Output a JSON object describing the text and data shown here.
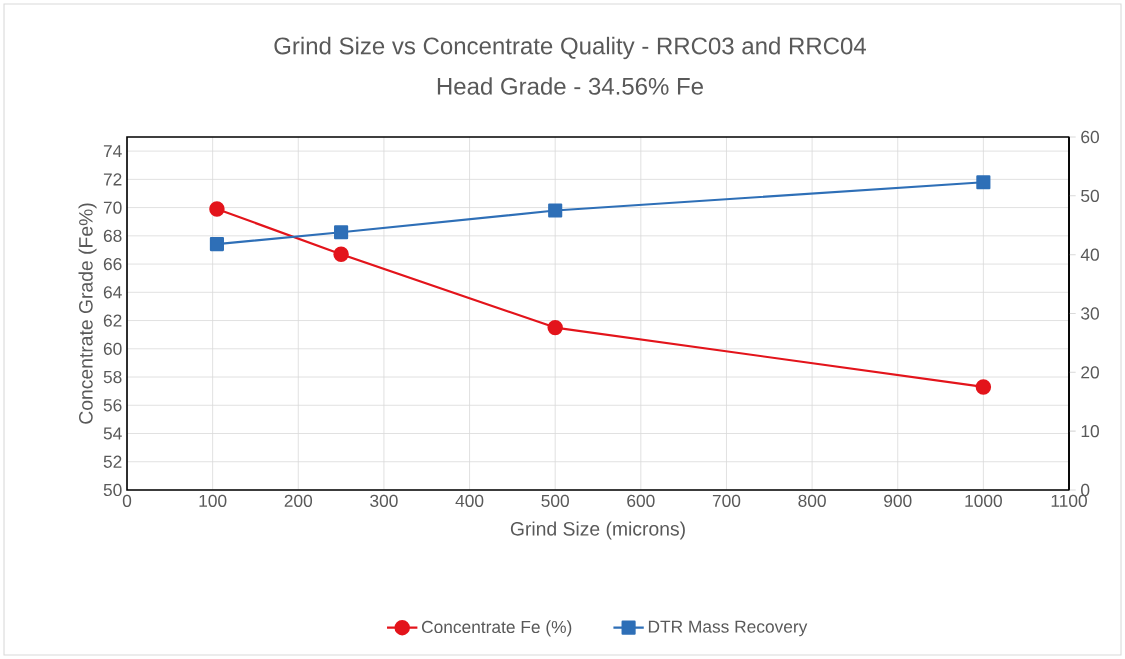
{
  "chart_data": {
    "type": "line",
    "title": "Grind Size vs Concentrate Quality - RRC03 and RRC04",
    "subtitle": "Head Grade - 34.56% Fe",
    "xlabel": "Grind Size (microns)",
    "ylabel": "Concentrate Grade (Fe%)",
    "x": [
      105,
      250,
      500,
      1000
    ],
    "series": [
      {
        "name": "Concentrate Fe (%)",
        "color": "#e3141b",
        "values": [
          69.9,
          66.7,
          61.5,
          57.3
        ],
        "marker": "circle"
      },
      {
        "name": "DTR Mass Recovery",
        "color": "#2e6fb7",
        "values": [
          41.8,
          43.8,
          47.5,
          52.3
        ],
        "marker": "square",
        "axis": "y2"
      }
    ],
    "xlim": [
      0,
      1100
    ],
    "xticks": [
      0,
      100,
      200,
      300,
      400,
      500,
      600,
      700,
      800,
      900,
      1000,
      1100
    ],
    "ylim": [
      50,
      75
    ],
    "yticks": [
      50,
      52,
      54,
      56,
      58,
      60,
      62,
      64,
      66,
      68,
      70,
      72,
      74
    ],
    "y2lim": [
      0,
      60
    ],
    "y2ticks": [
      0,
      10,
      20,
      30,
      40,
      50,
      60
    ],
    "grid": true,
    "legend": "bottom"
  }
}
